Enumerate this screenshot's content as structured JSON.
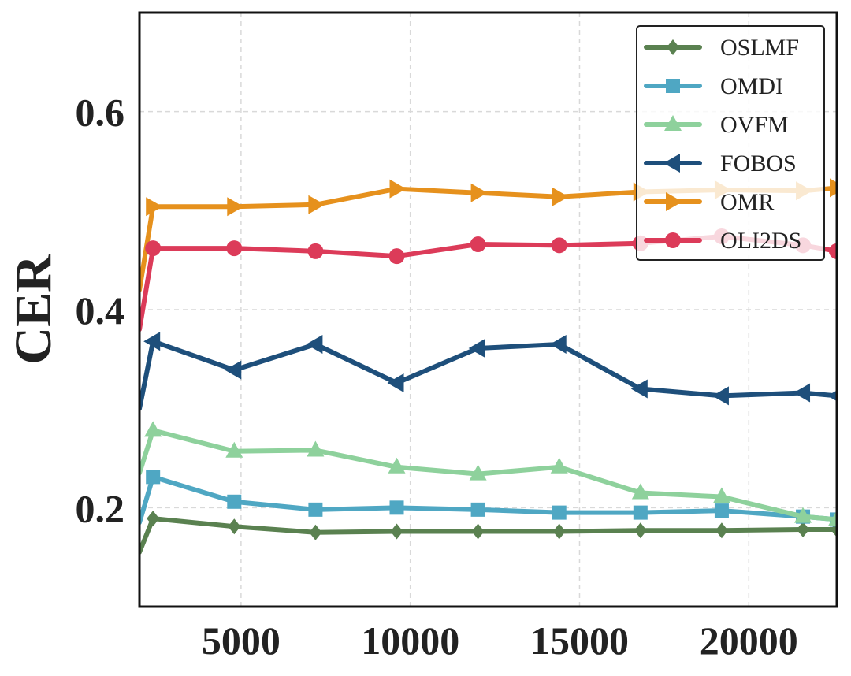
{
  "chart_data": {
    "type": "line",
    "title": "",
    "xlabel": "",
    "ylabel": "CER",
    "xlim": [
      2000,
      22600
    ],
    "ylim": [
      0.1,
      0.7
    ],
    "xticks": [
      5000,
      10000,
      15000,
      20000
    ],
    "xtick_labels": [
      "5000",
      "10000",
      "15000",
      "20000"
    ],
    "yticks": [
      0.2,
      0.4,
      0.6
    ],
    "ytick_labels": [
      "0.2",
      "0.4",
      "0.6"
    ],
    "grid": true,
    "legend_position": "top-right",
    "x": [
      2000,
      2400,
      4800,
      7200,
      9600,
      12000,
      14400,
      16800,
      19200,
      21600,
      22600
    ],
    "series": [
      {
        "name": "OSLMF",
        "color": "#5a8150",
        "marker": "diamond",
        "values": [
          0.155,
          0.189,
          0.181,
          0.175,
          0.176,
          0.176,
          0.176,
          0.177,
          0.177,
          0.178,
          0.178
        ]
      },
      {
        "name": "OMDI",
        "color": "#4fa7c3",
        "marker": "square",
        "values": [
          0.185,
          0.231,
          0.206,
          0.198,
          0.2,
          0.198,
          0.195,
          0.195,
          0.197,
          0.191,
          0.188
        ]
      },
      {
        "name": "OVFM",
        "color": "#8ed19c",
        "marker": "triangle-up",
        "values": [
          0.235,
          0.278,
          0.257,
          0.258,
          0.241,
          0.234,
          0.241,
          0.215,
          0.211,
          0.191,
          0.188
        ]
      },
      {
        "name": "FOBOS",
        "color": "#1e4f7b",
        "marker": "triangle-left",
        "values": [
          0.3,
          0.368,
          0.339,
          0.365,
          0.326,
          0.361,
          0.365,
          0.32,
          0.313,
          0.316,
          0.313
        ]
      },
      {
        "name": "OMR",
        "color": "#e6911d",
        "marker": "triangle-right",
        "values": [
          0.42,
          0.504,
          0.504,
          0.506,
          0.522,
          0.518,
          0.514,
          0.519,
          0.521,
          0.52,
          0.523
        ]
      },
      {
        "name": "OLI2DS",
        "color": "#dc3b59",
        "marker": "circle",
        "values": [
          0.38,
          0.462,
          0.462,
          0.459,
          0.454,
          0.466,
          0.465,
          0.467,
          0.474,
          0.465,
          0.459
        ]
      }
    ]
  }
}
